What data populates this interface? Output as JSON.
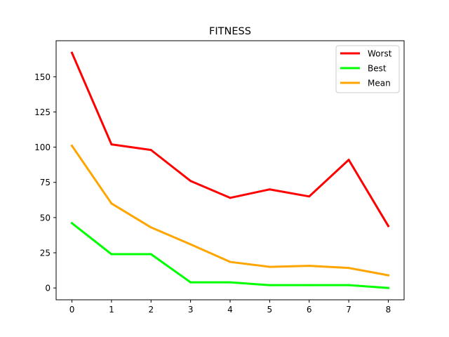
{
  "chart_data": {
    "type": "line",
    "title": "FITNESS",
    "xlabel": "",
    "ylabel": "",
    "x": [
      0,
      1,
      2,
      3,
      4,
      5,
      6,
      7,
      8
    ],
    "xlim": [
      -0.4,
      8.4
    ],
    "ylim": [
      -8.4,
      175.6
    ],
    "xticks": [
      0,
      1,
      2,
      3,
      4,
      5,
      6,
      7,
      8
    ],
    "yticks": [
      0,
      25,
      50,
      75,
      100,
      125,
      150
    ],
    "grid": false,
    "legend_position": "top-right",
    "series": [
      {
        "name": "Worst",
        "color": "#ff0000",
        "values": [
          167,
          102,
          98,
          76,
          64,
          70,
          65,
          91,
          44
        ]
      },
      {
        "name": "Best",
        "color": "#00ff00",
        "values": [
          46,
          24,
          24,
          4,
          4,
          2,
          2,
          2,
          0
        ]
      },
      {
        "name": "Mean",
        "color": "#ffa500",
        "values": [
          101,
          60,
          43,
          31,
          18.5,
          15,
          15.7,
          14.2,
          9
        ]
      }
    ]
  }
}
